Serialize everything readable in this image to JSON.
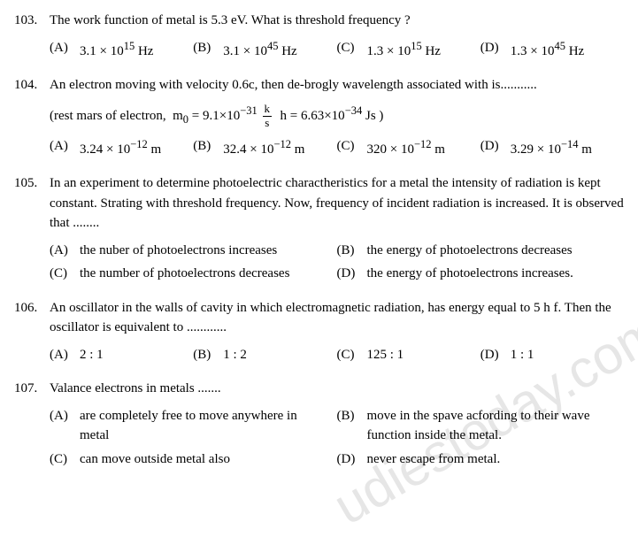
{
  "watermark": "udiestoday.com",
  "questions": [
    {
      "num": "103.",
      "text": "The work function of metal is 5.3 eV. What is threshold frequency ?",
      "option_layout": "four",
      "options": [
        {
          "letter": "(A)",
          "html": "3.1 &times; 10<sup>15</sup> Hz"
        },
        {
          "letter": "(B)",
          "html": "3.1 &times; 10<sup>45</sup> Hz"
        },
        {
          "letter": "(C)",
          "html": "1.3 &times; 10<sup>15</sup> Hz"
        },
        {
          "letter": "(D)",
          "html": "1.3 &times; 10<sup>45</sup> Hz"
        }
      ]
    },
    {
      "num": "104.",
      "text": "An electron moving with velocity 0.6c, then de-brogly wavelength associated with is...........",
      "extra_html": "(rest mars of electron, &nbsp;m<sub>0</sub> = 9.1&times;10<sup>&minus;31</sup> <span class='frac'><span class='num'>k</span><span class='den'>s</span></span>&nbsp; h = 6.63&times;10<sup>&minus;34</sup> Js )",
      "option_layout": "four",
      "options": [
        {
          "letter": "(A)",
          "html": "3.24 &times; 10<sup>&minus;12</sup> m"
        },
        {
          "letter": "(B)",
          "html": "32.4 &times; 10<sup>&minus;12</sup> m"
        },
        {
          "letter": "(C)",
          "html": "320 &times; 10<sup>&minus;12</sup> m"
        },
        {
          "letter": "(D)",
          "html": "3.29 &times; 10<sup>&minus;14</sup> m"
        }
      ]
    },
    {
      "num": "105.",
      "text": "In an experiment to determine photoelectric charactheristics for a metal the intensity of radiation is kept constant. Strating with threshold frequency. Now, frequency of incident radiation is increased. It is observed that ........",
      "option_layout": "two",
      "options": [
        {
          "letter": "(A)",
          "html": "the nuber of photoelectrons increases"
        },
        {
          "letter": "(B)",
          "html": "the energy of photoelectrons decreases"
        },
        {
          "letter": "(C)",
          "html": "the number of photoelectrons decreases"
        },
        {
          "letter": "(D)",
          "html": "the energy of photoelectrons increases."
        }
      ]
    },
    {
      "num": "106.",
      "text": "An oscillator in the walls of cavity in which electromagnetic radiation, has energy equal to 5 h f. Then the oscillator is equivalent to ............",
      "option_layout": "four",
      "options": [
        {
          "letter": "(A)",
          "html": "2 : 1"
        },
        {
          "letter": "(B)",
          "html": "1 : 2"
        },
        {
          "letter": "(C)",
          "html": "125 : 1"
        },
        {
          "letter": "(D)",
          "html": "1 : 1"
        }
      ]
    },
    {
      "num": "107.",
      "text": "Valance electrons in metals .......",
      "option_layout": "two",
      "options": [
        {
          "letter": "(A)",
          "html": "are completely free to move anywhere in metal"
        },
        {
          "letter": "(B)",
          "html": "move in the spave acfording to their wave function inside the metal."
        },
        {
          "letter": "(C)",
          "html": "can move outside metal also"
        },
        {
          "letter": "(D)",
          "html": "never escape from metal."
        }
      ]
    }
  ]
}
